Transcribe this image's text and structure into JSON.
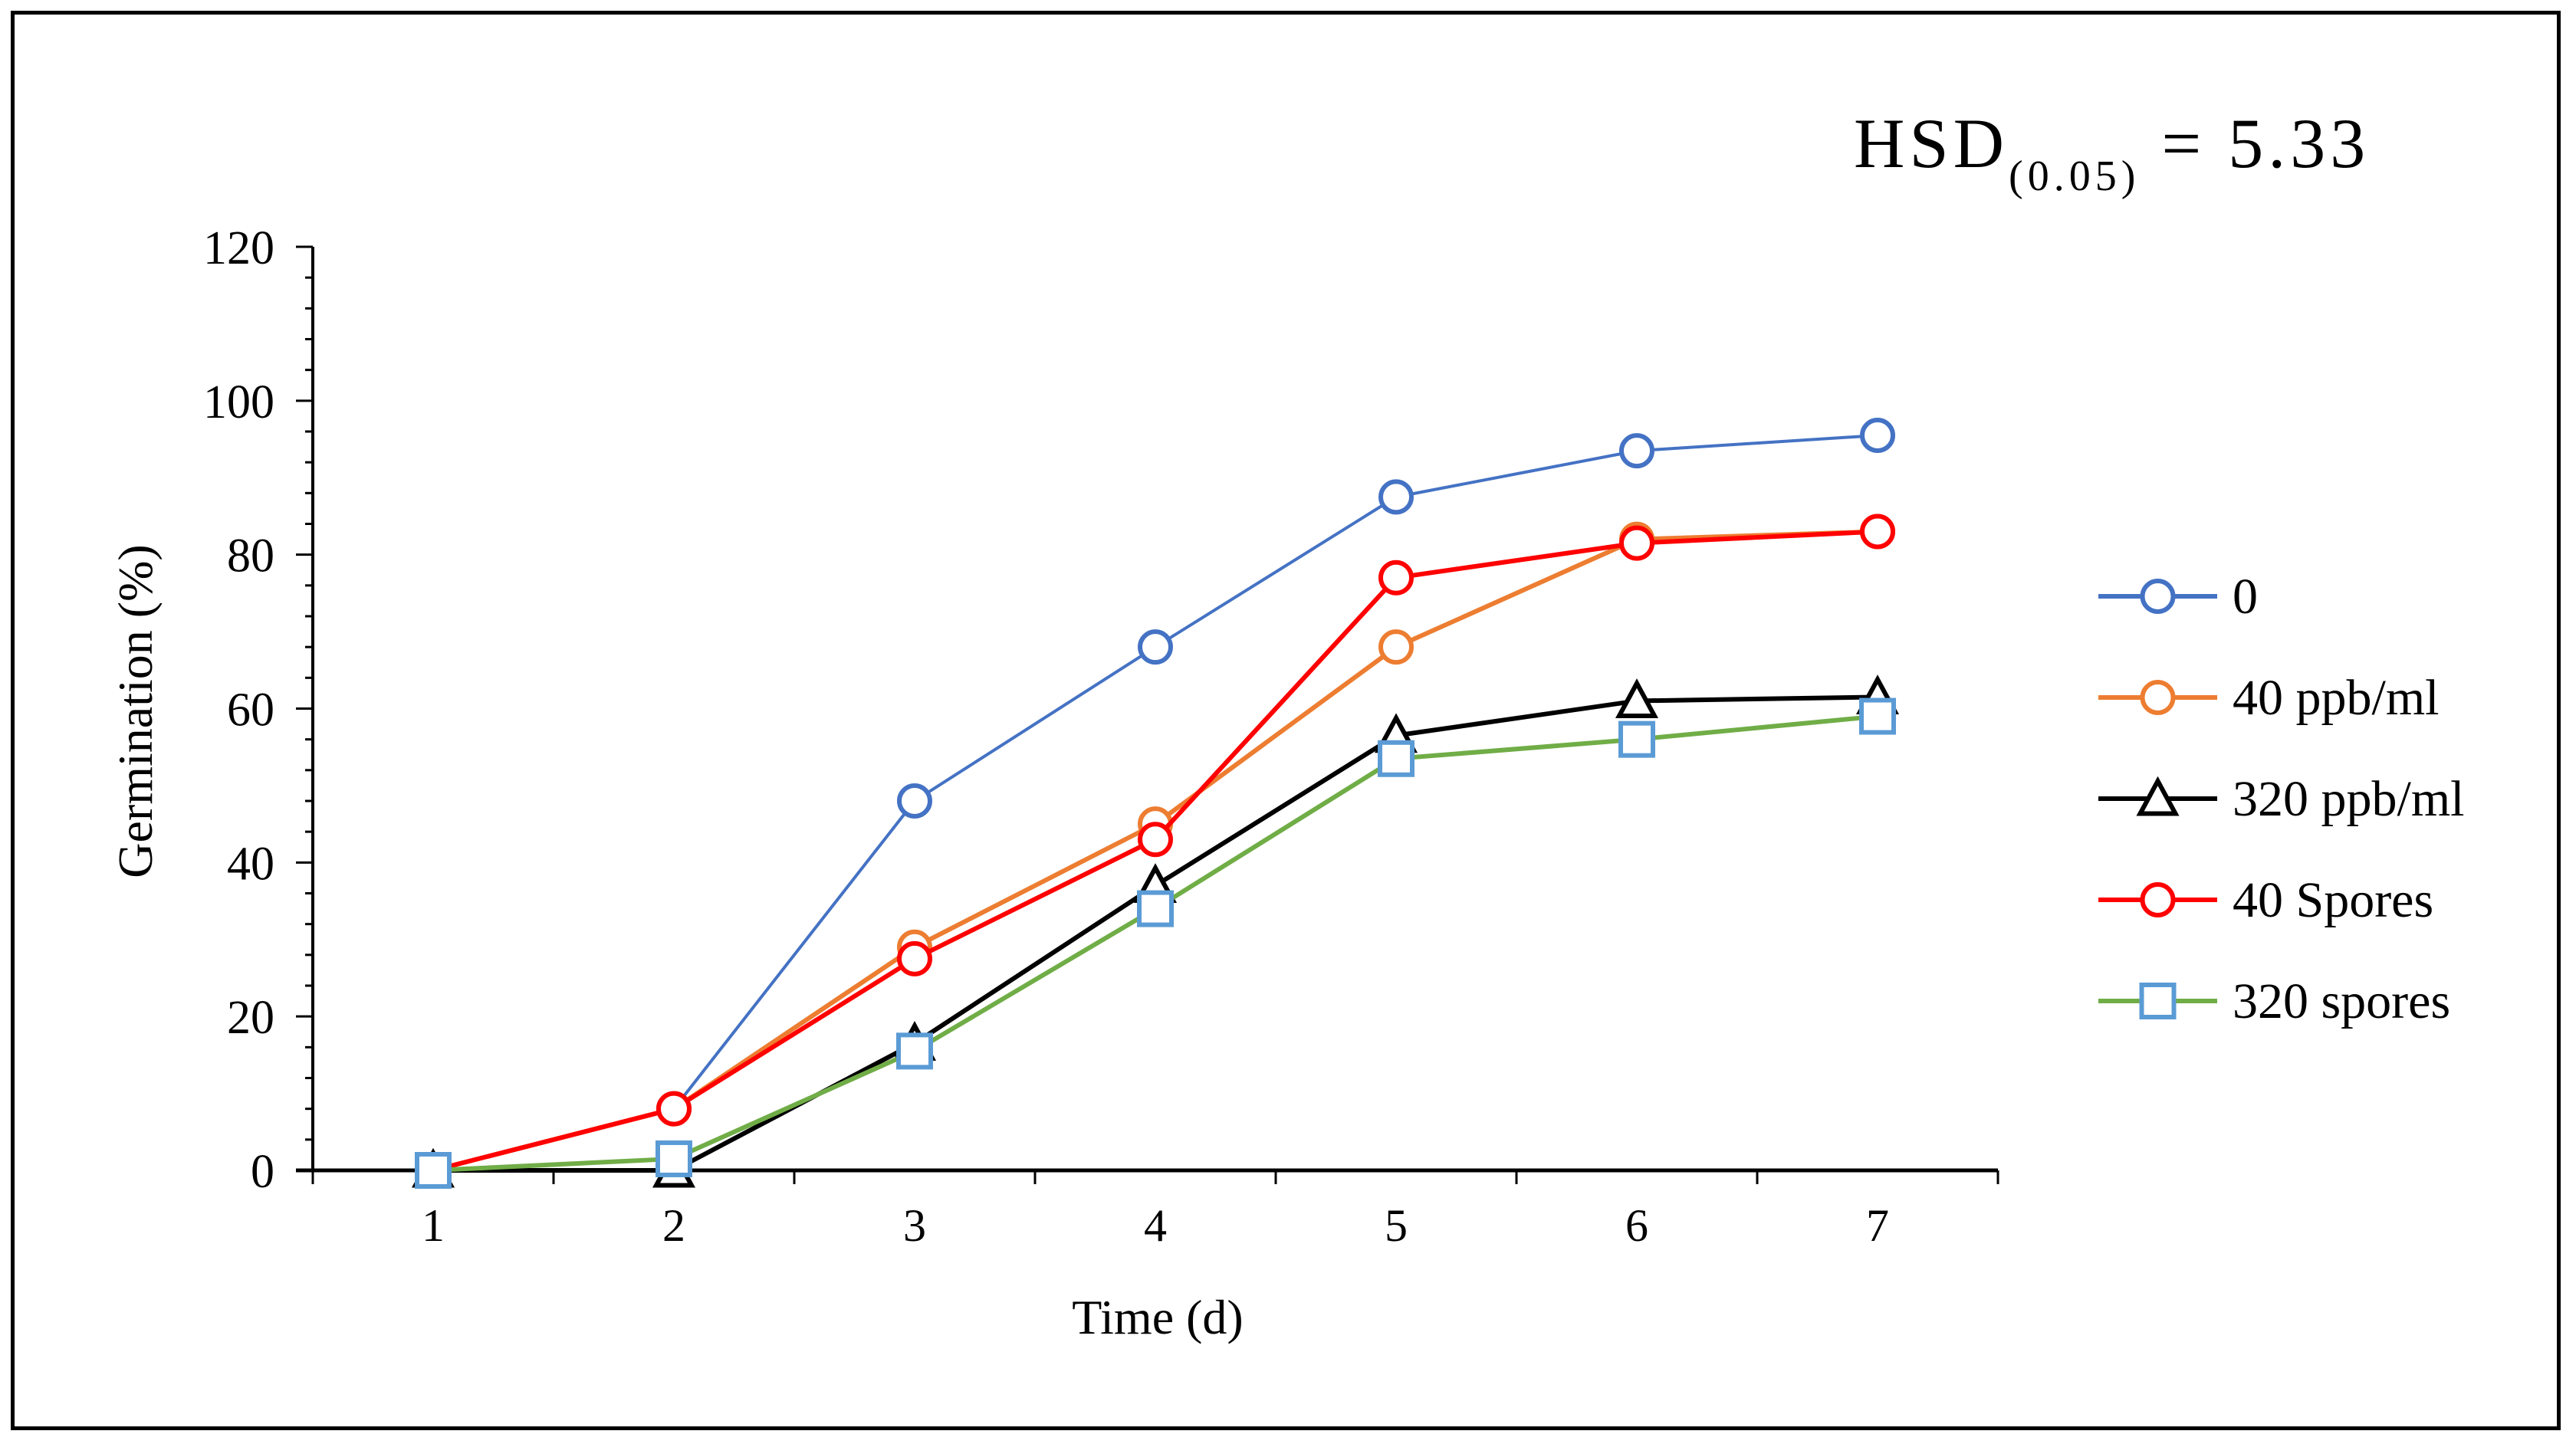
{
  "chart_data": {
    "type": "line",
    "title": "",
    "annotation": {
      "text": "HSD",
      "subscript": "(0.05)",
      "suffix": "= 5.33"
    },
    "xlabel": "Time (d)",
    "ylabel": "Germination  (%)",
    "x": [
      1,
      2,
      3,
      4,
      5,
      6,
      7
    ],
    "x_tick_labels": [
      "1",
      "2",
      "3",
      "4",
      "5",
      "6",
      "7"
    ],
    "ylim": [
      0,
      120
    ],
    "y_ticks": [
      0,
      20,
      40,
      60,
      80,
      100,
      120
    ],
    "y_tick_labels": [
      "0",
      "20",
      "40",
      "60",
      "80",
      "100",
      "120"
    ],
    "grid": false,
    "legend_position": "right",
    "series": [
      {
        "name": "0",
        "color": "#4472C4",
        "marker": "circle",
        "values": [
          0,
          8,
          48,
          68,
          87.5,
          93.5,
          95.5
        ]
      },
      {
        "name": "40 ppb/ml",
        "color": "#ED7D31",
        "marker": "circle",
        "values": [
          0,
          8,
          29,
          45,
          68,
          82,
          83
        ]
      },
      {
        "name": "320 ppb/ml",
        "color": "#000000",
        "marker": "triangle",
        "values": [
          0,
          0,
          16.5,
          37,
          56.5,
          61,
          61.5
        ]
      },
      {
        "name": "40 Spores",
        "color": "#FF0000",
        "marker": "circle",
        "values": [
          0,
          8,
          27.5,
          43,
          77,
          81.5,
          83
        ]
      },
      {
        "name": "320 spores",
        "color": "#70AD47",
        "marker": "square",
        "marker_color": "#5B9BD5",
        "values": [
          0,
          1.5,
          15.5,
          34,
          53.5,
          56,
          59
        ]
      }
    ]
  }
}
